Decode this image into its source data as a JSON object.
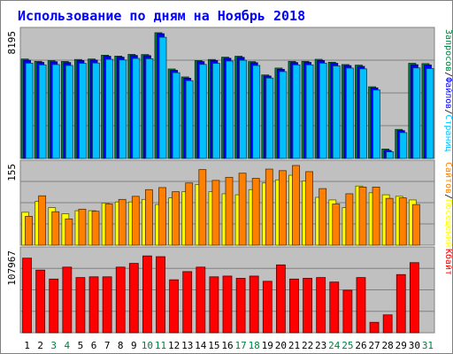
{
  "chart_data": {
    "type": "bar",
    "title": "Использование по дням на Ноябрь 2018",
    "categories": [
      "1",
      "2",
      "3",
      "4",
      "5",
      "6",
      "7",
      "8",
      "9",
      "10",
      "11",
      "12",
      "13",
      "14",
      "15",
      "16",
      "17",
      "18",
      "19",
      "20",
      "21",
      "22",
      "23",
      "24",
      "25",
      "26",
      "27",
      "28",
      "29",
      "30",
      "31"
    ],
    "weekend_days": [
      "3",
      "4",
      "10",
      "11",
      "17",
      "18",
      "24",
      "25",
      "31"
    ],
    "panels": [
      {
        "name": "top",
        "ymax_label": "8195",
        "ymax": 8195,
        "right_labels": [
          "Запросов",
          "/",
          "Файлов",
          "/",
          "Страниц"
        ],
        "right_colors": [
          "#008040",
          "#000000",
          "#0000ff",
          "#000000",
          "#00c0ff"
        ],
        "series": [
          {
            "name": "Запросов",
            "color": "#008040",
            "values": [
              6480,
              6330,
              6370,
              6320,
              6450,
              6480,
              6730,
              6670,
              6780,
              6770,
              8195,
              5830,
              5310,
              6380,
              6450,
              6600,
              6660,
              6310,
              5440,
              5890,
              6330,
              6330,
              6460,
              6270,
              6120,
              6080,
              4670,
              610,
              1890,
              6200,
              6180
            ]
          },
          {
            "name": "Файлов",
            "color": "#0000ff",
            "values": [
              6400,
              6260,
              6300,
              6250,
              6380,
              6410,
              6660,
              6600,
              6710,
              6700,
              8130,
              5740,
              5230,
              6310,
              6380,
              6530,
              6590,
              6240,
              5370,
              5810,
              6250,
              6260,
              6380,
              6200,
              6050,
              6000,
              4600,
              520,
              1810,
              6110,
              6090
            ]
          },
          {
            "name": "Страниц",
            "color": "#00c0ff",
            "values": [
              6210,
              6100,
              6120,
              6060,
              6200,
              6220,
              6460,
              6420,
              6520,
              6500,
              7900,
              5590,
              5070,
              6130,
              6200,
              6350,
              6400,
              6060,
              5240,
              5660,
              6100,
              6100,
              6210,
              6030,
              5890,
              5840,
              4460,
              430,
              1680,
              5900,
              5860
            ]
          }
        ]
      },
      {
        "name": "middle",
        "ymax_label": "155",
        "ymax": 155,
        "right_labels": [
          "Сайтов",
          "/",
          "Посещений"
        ],
        "right_colors": [
          "#ff8000",
          "#000000",
          "#ffff00"
        ],
        "series": [
          {
            "name": "Посещений",
            "color": "#ffff00",
            "values": [
              64,
              85,
              73,
              61,
              67,
              67,
              82,
              84,
              84,
              89,
              79,
              92,
              104,
              118,
              104,
              100,
              98,
              108,
              121,
              127,
              136,
              125,
              93,
              88,
              73,
              115,
              102,
              98,
              95,
              88,
              0
            ]
          },
          {
            "name": "Сайтов",
            "color": "#ff8000",
            "values": [
              56,
              96,
              65,
              51,
              70,
              66,
              80,
              89,
              95,
              108,
              112,
              104,
              121,
              147,
              126,
              132,
              140,
              130,
              148,
              145,
              155,
              143,
              110,
              80,
              100,
              113,
              113,
              91,
              92,
              79,
              0
            ]
          }
        ]
      },
      {
        "name": "bottom",
        "ymax_label": "107967",
        "ymax": 107967,
        "right_labels": [
          "Кбайт"
        ],
        "right_colors": [
          "#ff0000"
        ],
        "series": [
          {
            "name": "Кбайт",
            "color": "#ff0000",
            "values": [
              100000,
              84000,
              72000,
              88000,
              74000,
              75000,
              75000,
              88000,
              93000,
              103000,
              102000,
              71000,
              82000,
              88000,
              75000,
              76000,
              73000,
              76000,
              69000,
              91000,
              72000,
              73000,
              74000,
              68000,
              57000,
              74000,
              14000,
              24000,
              78000,
              94000,
              0
            ]
          }
        ]
      }
    ]
  }
}
